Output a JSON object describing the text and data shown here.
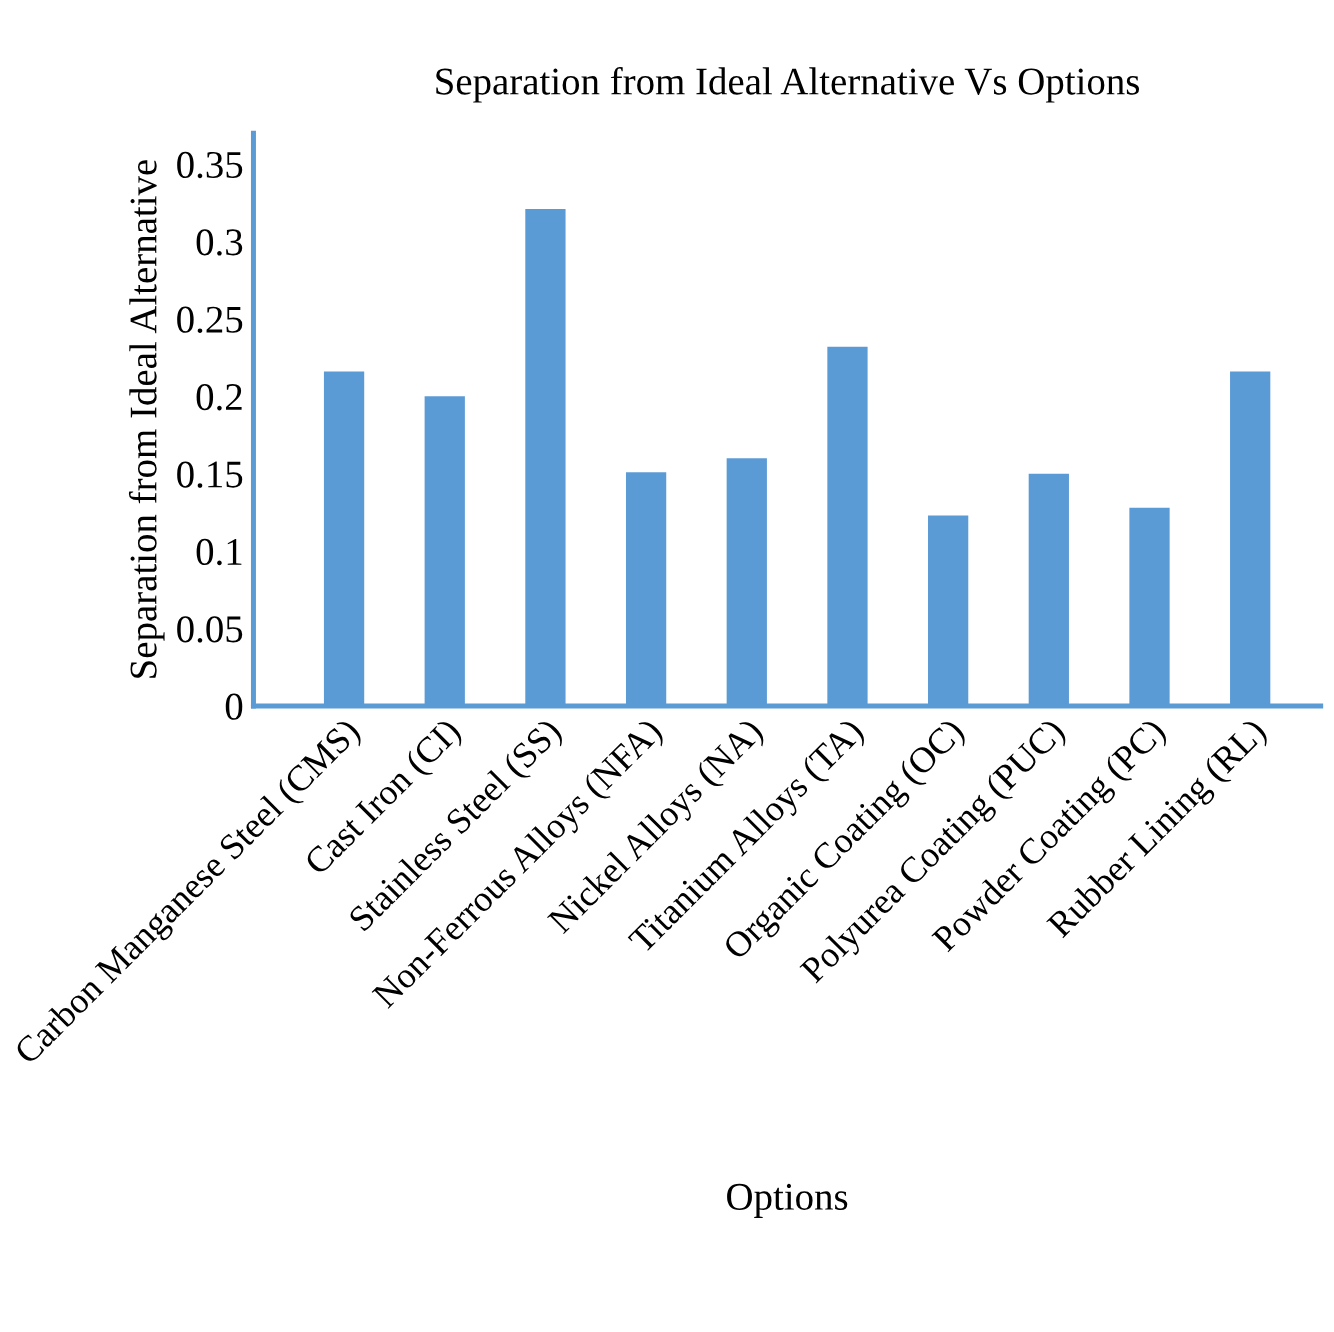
{
  "chart_data": {
    "type": "bar",
    "title": "Separation from Ideal Alternative Vs Options",
    "xlabel": "Options",
    "ylabel": "Separation from Ideal Alternative",
    "categories": [
      "Carbon Manganese Steel (CMS)",
      "Cast Iron (CI)",
      "Stainless Steel (SS)",
      "Non-Ferrous Alloys (NFA)",
      "Nickel Alloys (NA)",
      "Titanium Alloys (TA)",
      "Organic Coating (OC)",
      "Polyurea Coating (PUC)",
      "Powder Coating (PC)",
      "Rubber Lining (RL)"
    ],
    "values": [
      0.216,
      0.2,
      0.321,
      0.151,
      0.16,
      0.232,
      0.123,
      0.15,
      0.128,
      0.216
    ],
    "color": "#5b9bd5",
    "ylim": [
      0,
      0.37
    ],
    "yticks": [
      0,
      0.05,
      0.1,
      0.15,
      0.2,
      0.25,
      0.3,
      0.35
    ],
    "grid": false,
    "legend": false
  }
}
